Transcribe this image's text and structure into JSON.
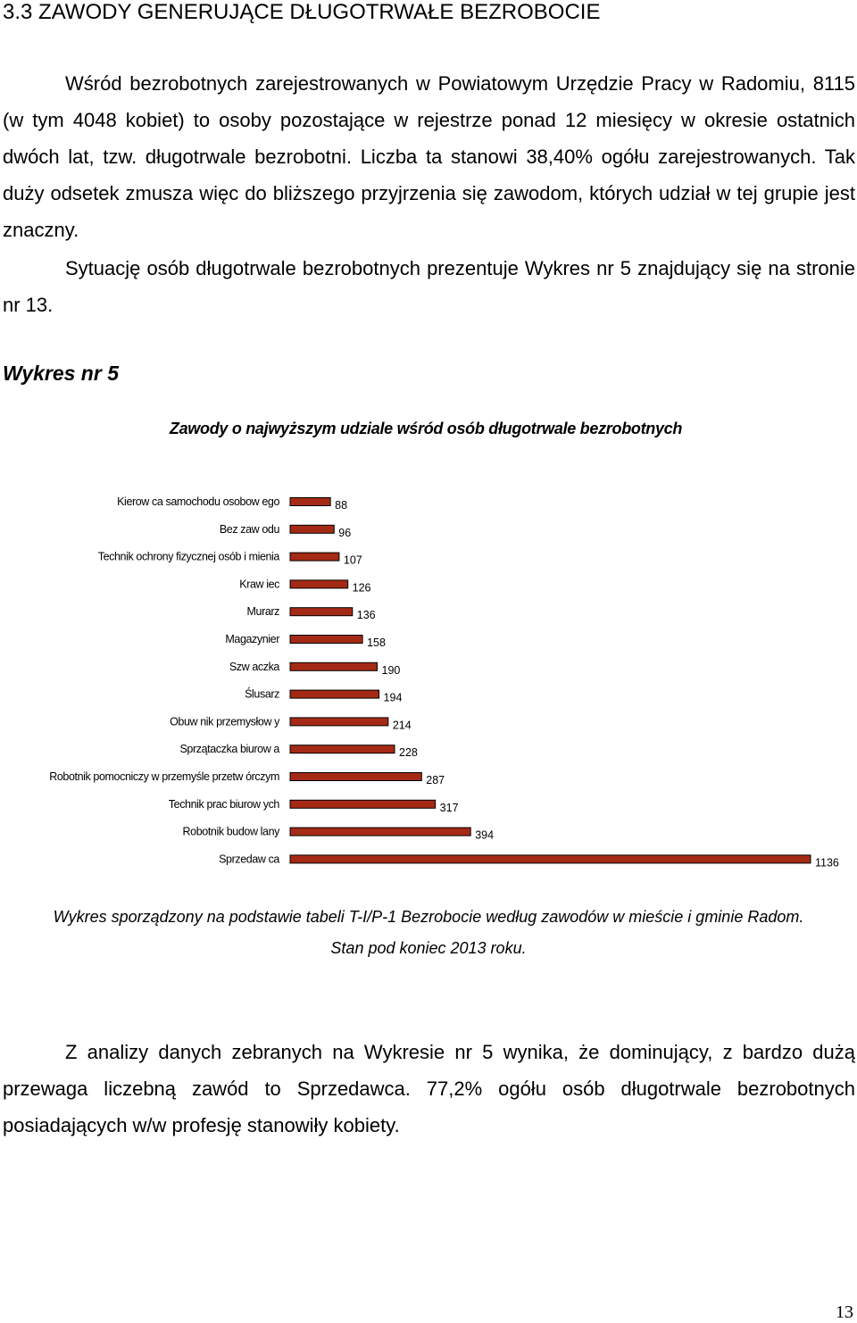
{
  "heading": "3.3 ZAWODY GENERUJĄCE DŁUGOTRWAŁE BEZROBOCIE",
  "para1": "Wśród bezrobotnych zarejestrowanych w Powiatowym Urzędzie Pracy w Radomiu, 8115 (w tym 4048 kobiet) to osoby pozostające w rejestrze ponad 12 miesięcy w okresie ostatnich dwóch lat, tzw. długotrwale bezrobotni. Liczba ta stanowi 38,40% ogółu zarejestrowanych. Tak duży odsetek zmusza więc do bliższego przyjrzenia się zawodom, których udział w tej grupie jest znaczny.",
  "para2": "Sytuację osób długotrwale bezrobotnych prezentuje Wykres nr 5 znajdujący się na stronie nr 13.",
  "figure_label": "Wykres nr 5",
  "chart_data": {
    "type": "bar",
    "orientation": "horizontal",
    "title": "Zawody o najwyższym udziale wśród osób długotrwale bezrobotnych",
    "categories": [
      "Kierow ca samochodu osobow ego",
      "Bez zaw odu",
      "Technik ochrony fizycznej osób i mienia",
      "Kraw iec",
      "Murarz",
      "Magazynier",
      "Szw aczka",
      "Ślusarz",
      "Obuw nik przemysłow y",
      "Sprzątaczka biurow a",
      "Robotnik pomocniczy w przemyśle przetw órczym",
      "Technik prac biurow ych",
      "Robotnik budow lany",
      "Sprzedaw ca"
    ],
    "values": [
      88,
      96,
      107,
      126,
      136,
      158,
      190,
      194,
      214,
      228,
      287,
      317,
      394,
      1136
    ],
    "value_labels": [
      "88",
      "96",
      "107",
      "126",
      "136",
      "158",
      "190",
      "194",
      "214",
      "228",
      "287",
      "317",
      "394",
      "1136"
    ],
    "xlim": [
      0,
      1136
    ],
    "grid": false,
    "bar_color": "#a52a15"
  },
  "source_line1": "Wykres sporządzony na  podstawie tabeli T-I/P-1 Bezrobocie według zawodów w mieście i gminie Radom.",
  "source_line2": "Stan pod koniec 2013 roku.",
  "para3": "Z analizy danych zebranych na Wykresie nr 5 wynika, że dominujący, z bardzo dużą przewaga liczebną zawód to Sprzedawca. 77,2% ogółu osób długotrwale bezrobotnych posiadających w/w profesję stanowiły kobiety.",
  "page_number": "13"
}
